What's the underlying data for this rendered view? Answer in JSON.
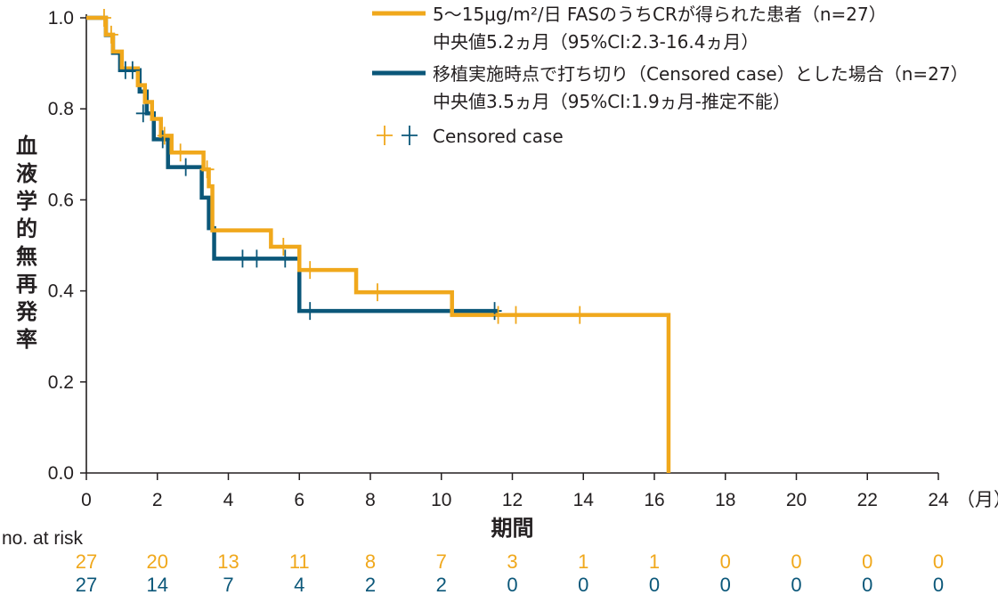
{
  "chart_data": {
    "type": "line",
    "subtype": "kaplan-meier",
    "xlabel": "期間",
    "x_unit": "（月）",
    "ylabel": "血液学的無再発率",
    "xlim": [
      0,
      24
    ],
    "ylim": [
      0,
      1.0
    ],
    "x_ticks": [
      "0",
      "2",
      "4",
      "6",
      "8",
      "10",
      "12",
      "14",
      "16",
      "18",
      "20",
      "22",
      "24"
    ],
    "y_ticks": [
      "0.0",
      "0.2",
      "0.4",
      "0.6",
      "0.8",
      "1.0"
    ],
    "grid": false,
    "legend_position": "top-right",
    "colors": {
      "orange": "#f0a81c",
      "navy": "#0b5779",
      "axis": "#231f20"
    },
    "series": [
      {
        "name": "5〜15μg/m²/日 FASのうちCRが得られた患者（n=27）",
        "note": "中央値5.2ヵ月（95%CI:2.3-16.4ヵ月）",
        "color": "#f0a81c",
        "steps": [
          [
            0,
            1.0
          ],
          [
            0.55,
            0.963
          ],
          [
            0.75,
            0.926
          ],
          [
            1.0,
            0.889
          ],
          [
            1.45,
            0.852
          ],
          [
            1.65,
            0.815
          ],
          [
            1.85,
            0.778
          ],
          [
            2.1,
            0.741
          ],
          [
            2.4,
            0.704
          ],
          [
            3.3,
            0.667
          ],
          [
            3.45,
            0.63
          ],
          [
            3.55,
            0.533
          ],
          [
            5.2,
            0.497
          ],
          [
            6.0,
            0.446
          ],
          [
            7.6,
            0.397
          ],
          [
            10.3,
            0.347
          ],
          [
            16.4,
            0.0
          ]
        ],
        "censored": [
          [
            0.5,
            1.0
          ],
          [
            0.7,
            0.963
          ],
          [
            2.2,
            0.741
          ],
          [
            2.65,
            0.704
          ],
          [
            3.4,
            0.667
          ],
          [
            5.55,
            0.497
          ],
          [
            6.3,
            0.446
          ],
          [
            8.2,
            0.397
          ],
          [
            11.6,
            0.347
          ],
          [
            12.1,
            0.347
          ],
          [
            13.9,
            0.347
          ]
        ]
      },
      {
        "name": "移植実施時点で打ち切り（Censored case）とした場合（n=27）",
        "note": "中央値3.5ヵ月（95%CI:1.9ヵ月-推定不能）",
        "color": "#0b5779",
        "steps": [
          [
            0,
            1.0
          ],
          [
            0.55,
            0.962
          ],
          [
            0.75,
            0.923
          ],
          [
            0.95,
            0.885
          ],
          [
            1.5,
            0.838
          ],
          [
            1.7,
            0.79
          ],
          [
            1.9,
            0.733
          ],
          [
            2.3,
            0.672
          ],
          [
            3.25,
            0.605
          ],
          [
            3.45,
            0.538
          ],
          [
            3.6,
            0.471
          ],
          [
            6.0,
            0.356
          ],
          [
            11.6,
            0.356
          ]
        ],
        "censored": [
          [
            1.1,
            0.885
          ],
          [
            1.3,
            0.885
          ],
          [
            1.6,
            0.79
          ],
          [
            2.15,
            0.733
          ],
          [
            2.8,
            0.672
          ],
          [
            4.4,
            0.471
          ],
          [
            4.8,
            0.471
          ],
          [
            5.6,
            0.471
          ],
          [
            6.3,
            0.356
          ],
          [
            11.5,
            0.356
          ]
        ]
      }
    ],
    "censored_legend": "Censored case",
    "risk_table": {
      "label": "no. at risk",
      "times": [
        0,
        2,
        4,
        6,
        8,
        10,
        12,
        14,
        16,
        18,
        20,
        22,
        24
      ],
      "rows": [
        {
          "color": "#f0a81c",
          "values": [
            "27",
            "20",
            "13",
            "11",
            "8",
            "7",
            "3",
            "1",
            "1",
            "0",
            "0",
            "0",
            "0"
          ]
        },
        {
          "color": "#0b5779",
          "values": [
            "27",
            "14",
            "7",
            "4",
            "2",
            "2",
            "0",
            "0",
            "0",
            "0",
            "0",
            "0",
            "0"
          ]
        }
      ]
    }
  }
}
